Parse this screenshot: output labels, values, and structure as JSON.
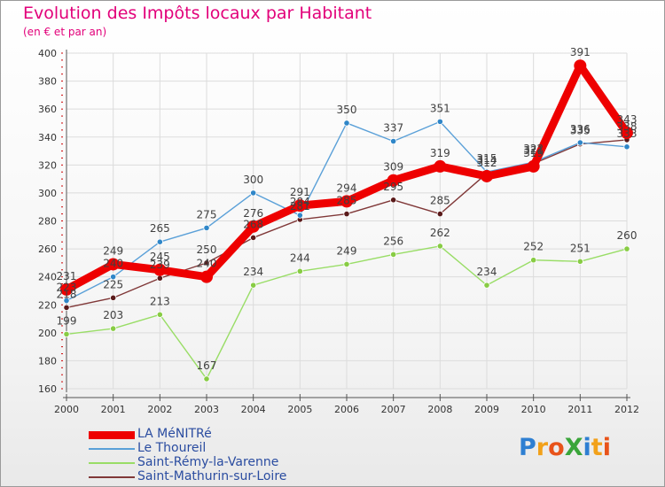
{
  "header": {
    "title": "Evolution des Impôts locaux par Habitant",
    "subtitle": "(en € et par an)"
  },
  "chart_data": {
    "type": "line",
    "title": "Evolution des Impôts locaux par Habitant",
    "subtitle": "(en € et par an)",
    "xlabel": "",
    "ylabel": "",
    "ylim": [
      160,
      400
    ],
    "yticks": [
      160,
      180,
      200,
      220,
      240,
      260,
      280,
      300,
      320,
      340,
      360,
      380,
      400
    ],
    "grid": true,
    "categories": [
      "2000",
      "2001",
      "2002",
      "2003",
      "2004",
      "2005",
      "2006",
      "2007",
      "2008",
      "2009",
      "2010",
      "2011",
      "2012"
    ],
    "series": [
      {
        "name": "Saint-Rémy-la-Varenne",
        "color": "#99dd66",
        "dot_color": "#88cc44",
        "label_color": "#404040",
        "values": [
          199,
          203,
          213,
          167,
          234,
          244,
          249,
          256,
          262,
          234,
          252,
          251,
          260
        ],
        "labels": [
          "199",
          "203",
          "213",
          "167",
          "234",
          "244",
          "249",
          "256",
          "262",
          "234",
          "252",
          "251",
          "260"
        ]
      },
      {
        "name": "Saint-Mathurin-sur-Loire",
        "color": "#803838",
        "dot_color": "#5a1a1a",
        "label_color": "#404040",
        "values": [
          218,
          225,
          239,
          250,
          268,
          281,
          285,
          295,
          285,
          314,
          321,
          335,
          338
        ],
        "labels": [
          "218",
          "225",
          "239",
          "250",
          "268",
          "281",
          "285",
          "295",
          "285",
          "314",
          "321",
          "335",
          "338"
        ]
      },
      {
        "name": "Le Thoureil",
        "color": "#5aa0d8",
        "dot_color": "#2f86c8",
        "label_color": "#404040",
        "values": [
          223,
          240,
          265,
          275,
          300,
          284,
          350,
          337,
          351,
          315,
          322,
          336,
          333
        ],
        "labels": [
          "223",
          "240",
          "265",
          "275",
          "300",
          "284",
          "350",
          "337",
          "351",
          "315",
          "322",
          "336",
          "333"
        ]
      },
      {
        "name": "LA MéNITRé",
        "color": "#ee0000",
        "dot_color": "#ee0000",
        "label_color": "#404040",
        "values": [
          231,
          249,
          245,
          240,
          276,
          291,
          294,
          309,
          319,
          312,
          319,
          391,
          343
        ],
        "labels": [
          "231",
          "249",
          "245",
          "240",
          "276",
          "291",
          "294",
          "309",
          "319",
          "312",
          "319",
          "391",
          "343"
        ]
      }
    ]
  },
  "legend": {
    "items": [
      {
        "label": "LA MéNITRé",
        "color": "#ee0000"
      },
      {
        "label": "Le Thoureil",
        "color": "#5aa0d8"
      },
      {
        "label": "Saint-Rémy-la-Varenne",
        "color": "#99dd66"
      },
      {
        "label": "Saint-Mathurin-sur-Loire",
        "color": "#803838"
      }
    ]
  },
  "logo": {
    "text": "ProXiti",
    "letters": [
      {
        "ch": "P",
        "color": "#2e7fd2"
      },
      {
        "ch": "r",
        "color": "#f2a11a"
      },
      {
        "ch": "o",
        "color": "#e8531a"
      },
      {
        "ch": "X",
        "color": "#3aa53a"
      },
      {
        "ch": "i",
        "color": "#2e7fd2"
      },
      {
        "ch": "t",
        "color": "#f2a11a"
      },
      {
        "ch": "i",
        "color": "#e8531a"
      }
    ]
  }
}
